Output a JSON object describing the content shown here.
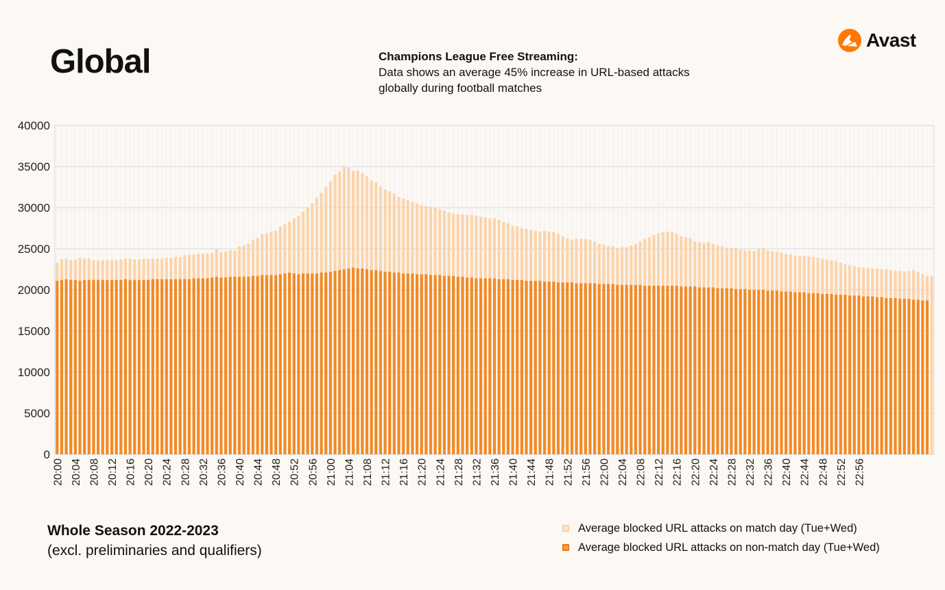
{
  "header": {
    "title": "Global",
    "subtitle_heading": "Champions League Free Streaming:",
    "subtitle_body": "Data shows an average 45% increase in URL-based attacks\nglobally during football matches"
  },
  "logo": {
    "name": "Avast",
    "icon": "avast-logo-icon"
  },
  "footer": {
    "season": "Whole Season 2022-2023",
    "note": "(excl. preliminaries and qualifiers)"
  },
  "colors": {
    "match_day": "#fbd4ad",
    "non_match_day": "#f18a26",
    "gridline": "#dfe4ea",
    "background": "#fcf8f3",
    "brand": "#ff7800"
  },
  "chart_data": {
    "type": "bar",
    "stacked": "overlay",
    "title": "Champions League Free Streaming",
    "xlabel": "",
    "ylabel": "",
    "ylim": [
      0,
      40000
    ],
    "yticks": [
      0,
      5000,
      10000,
      15000,
      20000,
      25000,
      30000,
      35000,
      40000
    ],
    "x_tick_labels": [
      "20:00",
      "20:04",
      "20:08",
      "20:12",
      "20:16",
      "20:20",
      "20:24",
      "20:28",
      "20:32",
      "20:36",
      "20:40",
      "20:44",
      "20:48",
      "20:52",
      "20:56",
      "21:00",
      "21:04",
      "21:08",
      "21:12",
      "21:16",
      "21:20",
      "21:24",
      "21:28",
      "21:32",
      "21:36",
      "21:40",
      "21:44",
      "21:48",
      "21:52",
      "21:56",
      "22:00",
      "22:04",
      "22:08",
      "22:12",
      "22:16",
      "22:20",
      "22:24",
      "22:28",
      "22:32",
      "22:36",
      "22:40",
      "22:44",
      "22:48",
      "22:52",
      "22:56"
    ],
    "start_time": "20:00",
    "interval_minutes": 1,
    "grid": true,
    "legend_position": "bottom-right",
    "series": [
      {
        "name": "Average blocked URL attacks on match day (Tue+Wed)",
        "values": [
          23300,
          23700,
          23800,
          23600,
          23700,
          23900,
          23800,
          23800,
          23600,
          23600,
          23600,
          23600,
          23600,
          23600,
          23700,
          23800,
          23800,
          23700,
          23700,
          23800,
          23800,
          23800,
          23800,
          23800,
          23900,
          23900,
          24000,
          24000,
          24200,
          24300,
          24300,
          24400,
          24400,
          24400,
          24500,
          25000,
          24600,
          24700,
          24800,
          24800,
          25300,
          25400,
          25600,
          26100,
          26300,
          26800,
          26900,
          27100,
          27200,
          27700,
          28000,
          28300,
          28700,
          29000,
          29500,
          30000,
          30500,
          31200,
          31800,
          32500,
          33200,
          34000,
          34400,
          35000,
          34900,
          34500,
          34500,
          34200,
          33800,
          33300,
          33100,
          32600,
          32200,
          32000,
          31700,
          31300,
          31100,
          30900,
          30700,
          30500,
          30300,
          30200,
          30100,
          30000,
          29800,
          29600,
          29400,
          29300,
          29200,
          29200,
          29100,
          29100,
          29000,
          28900,
          28800,
          28700,
          28700,
          28500,
          28300,
          28100,
          27800,
          27700,
          27500,
          27400,
          27300,
          27200,
          27100,
          27200,
          27100,
          27000,
          26800,
          26500,
          26300,
          26100,
          26200,
          26200,
          26200,
          26100,
          25900,
          25600,
          25500,
          25300,
          25300,
          25100,
          25200,
          25200,
          25400,
          25600,
          25900,
          26200,
          26400,
          26700,
          26900,
          27000,
          27100,
          27000,
          26800,
          26500,
          26400,
          26300,
          25900,
          25800,
          25700,
          25800,
          25600,
          25400,
          25300,
          25100,
          25100,
          25100,
          24900,
          24800,
          24800,
          24700,
          25000,
          25100,
          24800,
          24700,
          24600,
          24500,
          24400,
          24300,
          24200,
          24100,
          24100,
          24100,
          24000,
          23900,
          23800,
          23700,
          23600,
          23500,
          23300,
          23100,
          23000,
          22900,
          22800,
          22700,
          22700,
          22600,
          22600,
          22500,
          22500,
          22400,
          22300,
          22300,
          22200,
          22300,
          22400,
          22200,
          21900,
          21700,
          21700
        ]
      },
      {
        "name": "Average blocked URL attacks on non-match day (Tue+Wed)",
        "values": [
          21100,
          21200,
          21300,
          21200,
          21200,
          21100,
          21200,
          21200,
          21200,
          21200,
          21200,
          21200,
          21200,
          21200,
          21200,
          21300,
          21200,
          21200,
          21200,
          21200,
          21200,
          21300,
          21300,
          21300,
          21300,
          21300,
          21300,
          21300,
          21300,
          21300,
          21400,
          21400,
          21400,
          21400,
          21500,
          21600,
          21500,
          21500,
          21600,
          21600,
          21600,
          21600,
          21600,
          21700,
          21700,
          21800,
          21800,
          21800,
          21800,
          21900,
          22000,
          22100,
          22000,
          21900,
          22000,
          22000,
          22000,
          22000,
          22100,
          22100,
          22200,
          22300,
          22400,
          22500,
          22600,
          22700,
          22600,
          22600,
          22500,
          22400,
          22400,
          22300,
          22200,
          22200,
          22100,
          22100,
          22000,
          22000,
          22000,
          21900,
          21900,
          21900,
          21800,
          21800,
          21800,
          21700,
          21700,
          21700,
          21600,
          21600,
          21500,
          21500,
          21400,
          21400,
          21400,
          21400,
          21400,
          21300,
          21300,
          21300,
          21200,
          21200,
          21200,
          21100,
          21100,
          21100,
          21100,
          21000,
          21000,
          21000,
          20900,
          20900,
          20900,
          20900,
          20800,
          20800,
          20800,
          20800,
          20800,
          20700,
          20700,
          20700,
          20700,
          20600,
          20600,
          20600,
          20600,
          20600,
          20600,
          20500,
          20500,
          20500,
          20500,
          20500,
          20500,
          20500,
          20500,
          20400,
          20400,
          20400,
          20400,
          20300,
          20300,
          20300,
          20300,
          20200,
          20200,
          20200,
          20200,
          20100,
          20100,
          20100,
          20000,
          20000,
          20000,
          20000,
          19900,
          19900,
          19900,
          19800,
          19800,
          19800,
          19700,
          19700,
          19700,
          19600,
          19600,
          19600,
          19500,
          19500,
          19500,
          19400,
          19400,
          19400,
          19300,
          19300,
          19300,
          19200,
          19200,
          19200,
          19100,
          19100,
          19000,
          19000,
          19000,
          18900,
          18900,
          18900,
          18800,
          18800,
          18700,
          18700
        ]
      }
    ]
  }
}
